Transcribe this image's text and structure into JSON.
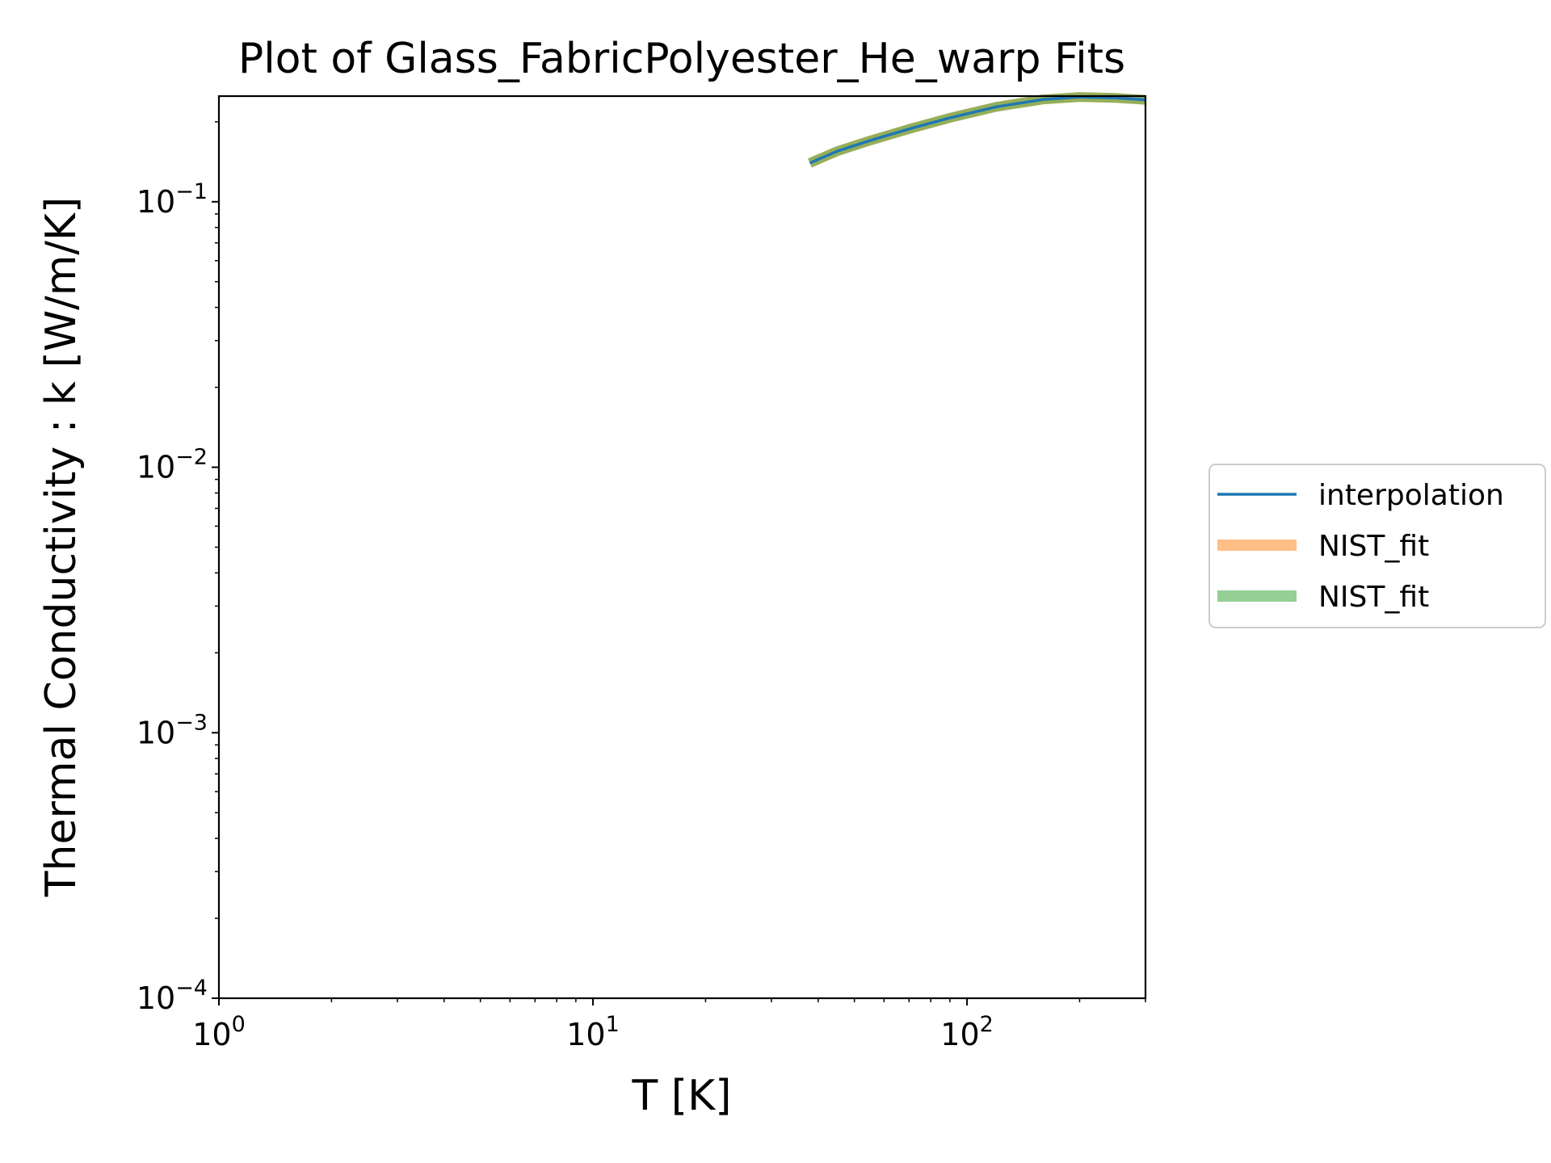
{
  "chart_data": {
    "type": "line",
    "title": "Plot of Glass_FabricPolyester_He_warp Fits",
    "xlabel": "T [K]",
    "ylabel": "Thermal Conductivity : k [W/m/K]",
    "xscale": "log",
    "yscale": "log",
    "xlim": [
      1,
      300
    ],
    "ylim": [
      0.0001,
      0.25
    ],
    "grid": false,
    "legend_position": "outside-right",
    "x_ticks": [
      {
        "value": 1,
        "base": "10",
        "exp": "0"
      },
      {
        "value": 10,
        "base": "10",
        "exp": "1"
      },
      {
        "value": 100,
        "base": "10",
        "exp": "2"
      }
    ],
    "y_ticks": [
      {
        "value": 0.0001,
        "base": "10",
        "exp": "−4"
      },
      {
        "value": 0.001,
        "base": "10",
        "exp": "−3"
      },
      {
        "value": 0.01,
        "base": "10",
        "exp": "−2"
      },
      {
        "value": 0.1,
        "base": "10",
        "exp": "−1"
      }
    ],
    "series": [
      {
        "name": "interpolation",
        "color": "#1f77b4",
        "alpha": 1.0,
        "style": "thin",
        "x": [
          38,
          45,
          55,
          70,
          90,
          120,
          160,
          200,
          250,
          300
        ],
        "y": [
          0.14,
          0.155,
          0.17,
          0.188,
          0.207,
          0.228,
          0.243,
          0.248,
          0.246,
          0.242
        ]
      },
      {
        "name": "NIST_fit",
        "color": "#ff7f0e",
        "alpha": 0.5,
        "style": "thick",
        "x": [
          38,
          45,
          55,
          70,
          90,
          120,
          160,
          200,
          250,
          300
        ],
        "y": [
          0.14,
          0.155,
          0.17,
          0.188,
          0.207,
          0.228,
          0.243,
          0.248,
          0.246,
          0.242
        ]
      },
      {
        "name": "NIST_fit",
        "color": "#2ca02c",
        "alpha": 0.5,
        "style": "thick",
        "x": [
          38,
          45,
          55,
          70,
          90,
          120,
          160,
          200,
          250,
          300
        ],
        "y": [
          0.14,
          0.155,
          0.17,
          0.188,
          0.207,
          0.228,
          0.243,
          0.248,
          0.246,
          0.242
        ]
      }
    ]
  }
}
